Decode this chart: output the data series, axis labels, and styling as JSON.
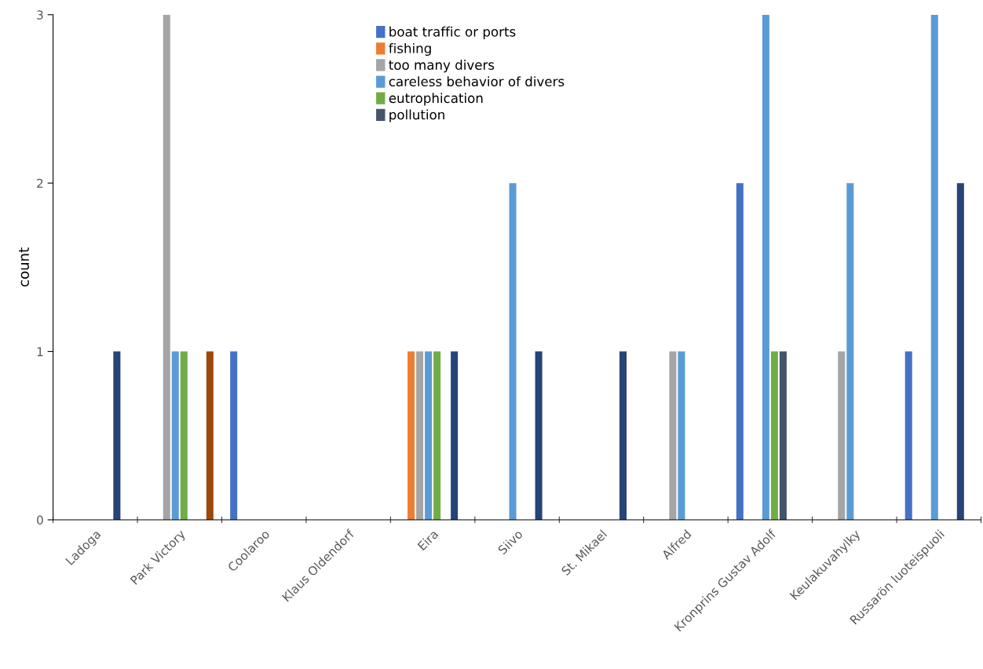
{
  "chart_data": {
    "type": "bar",
    "ylabel": "count",
    "categories": [
      "Ladoga",
      "Park Victory",
      "Coolaroo",
      "Klaus Oldendorf",
      "Eira",
      "Siivo",
      "St. Mikael",
      "Alfred",
      "Kronprins Gustav Adolf",
      "Keulakuvahylky",
      "Russarön luoteispuoli"
    ],
    "series": [
      {
        "name": "boat traffic or ports",
        "color": "#4472c4",
        "values": [
          0,
          0,
          1,
          0,
          0,
          0,
          0,
          0,
          2,
          0,
          1
        ]
      },
      {
        "name": "fishing",
        "color": "#ed7d31",
        "values": [
          0,
          0,
          0,
          0,
          1,
          0,
          0,
          0,
          0,
          0,
          0
        ]
      },
      {
        "name": "too many divers",
        "color": "#a5a5a5",
        "values": [
          0,
          3,
          0,
          0,
          1,
          0,
          0,
          1,
          0,
          1,
          0
        ]
      },
      {
        "name": "careless behavior of divers",
        "color": "#5b9bd5",
        "values": [
          0,
          1,
          0,
          0,
          1,
          2,
          0,
          1,
          3,
          2,
          3
        ]
      },
      {
        "name": "eutrophication",
        "color": "#70ad47",
        "values": [
          0,
          1,
          0,
          0,
          1,
          0,
          0,
          0,
          1,
          0,
          0
        ]
      },
      {
        "name": "pollution",
        "color": "#44546a",
        "values": [
          0,
          0,
          0,
          0,
          0,
          0,
          0,
          0,
          1,
          0,
          0
        ]
      },
      {
        "color": "#264478",
        "values": [
          1,
          0,
          0,
          0,
          1,
          1,
          1,
          0,
          0,
          0,
          2
        ]
      },
      {
        "color": "#9e480e",
        "values": [
          0,
          1,
          0,
          0,
          0,
          0,
          0,
          0,
          0,
          0,
          0
        ]
      }
    ],
    "ylim": [
      0,
      3
    ],
    "yticks": [
      0,
      1,
      2,
      3
    ],
    "legend": "top"
  }
}
